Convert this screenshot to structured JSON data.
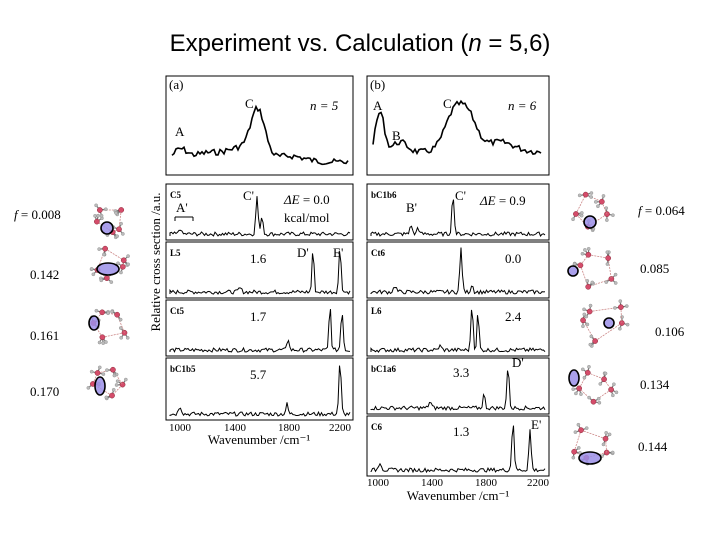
{
  "title": "Experiment vs. Calculation (n = 5,6)",
  "title_parts": {
    "prefix": "Experiment vs. Calculation (",
    "var": "n",
    "suffix": " = 5,6)"
  },
  "ylabel": "Relative cross section /a.u.",
  "xlabel_a": "Wavenumber /cm⁻¹",
  "xlabel_b": "Wavenumber /cm⁻¹",
  "ticks_a": [
    "1000",
    "1400",
    "1800",
    "2200"
  ],
  "ticks_b": [
    "1000",
    "1400",
    "1800",
    "2200"
  ],
  "panel_a": {
    "tag": "(a)",
    "n_label": "n = 5",
    "peaks": {
      "A": "A",
      "C": "C",
      "C5": "C'",
      "Aprime": "A'",
      "L5": "D'",
      "E5": "E'"
    },
    "rows": [
      "C5",
      "L5",
      "Ct5",
      "bC1b5"
    ]
  },
  "panel_b": {
    "tag": "(b)",
    "n_label": "n = 6",
    "peaks": {
      "A": "A",
      "B": "B",
      "C": "C",
      "Cprime": "C'",
      "Bprime": "B'"
    },
    "rows": [
      "bC1b6",
      "Ct6",
      "L6",
      "bC1a6",
      "C6"
    ]
  },
  "left_f_prefix": "f",
  "left_values": [
    "= 0.008",
    "0.142",
    "0.161",
    "0.170"
  ],
  "right_f_prefix": "f",
  "right_values": [
    "= 0.064",
    "0.085",
    "0.106",
    "0.134",
    "0.144"
  ],
  "energy_a": {
    "first_prefix": "ΔE",
    "first_value": "= 0.0",
    "unit": "kcal/mol",
    "others": [
      "1.6",
      "1.7",
      "5.7"
    ]
  },
  "energy_b": {
    "first_prefix": "ΔE",
    "first_value": "= 0.9",
    "others": [
      "0.0",
      "2.4",
      "3.3",
      "1.3"
    ]
  },
  "extra_peaks": {
    "Dprime_b": "D'",
    "Eprime_b": "E'"
  }
}
